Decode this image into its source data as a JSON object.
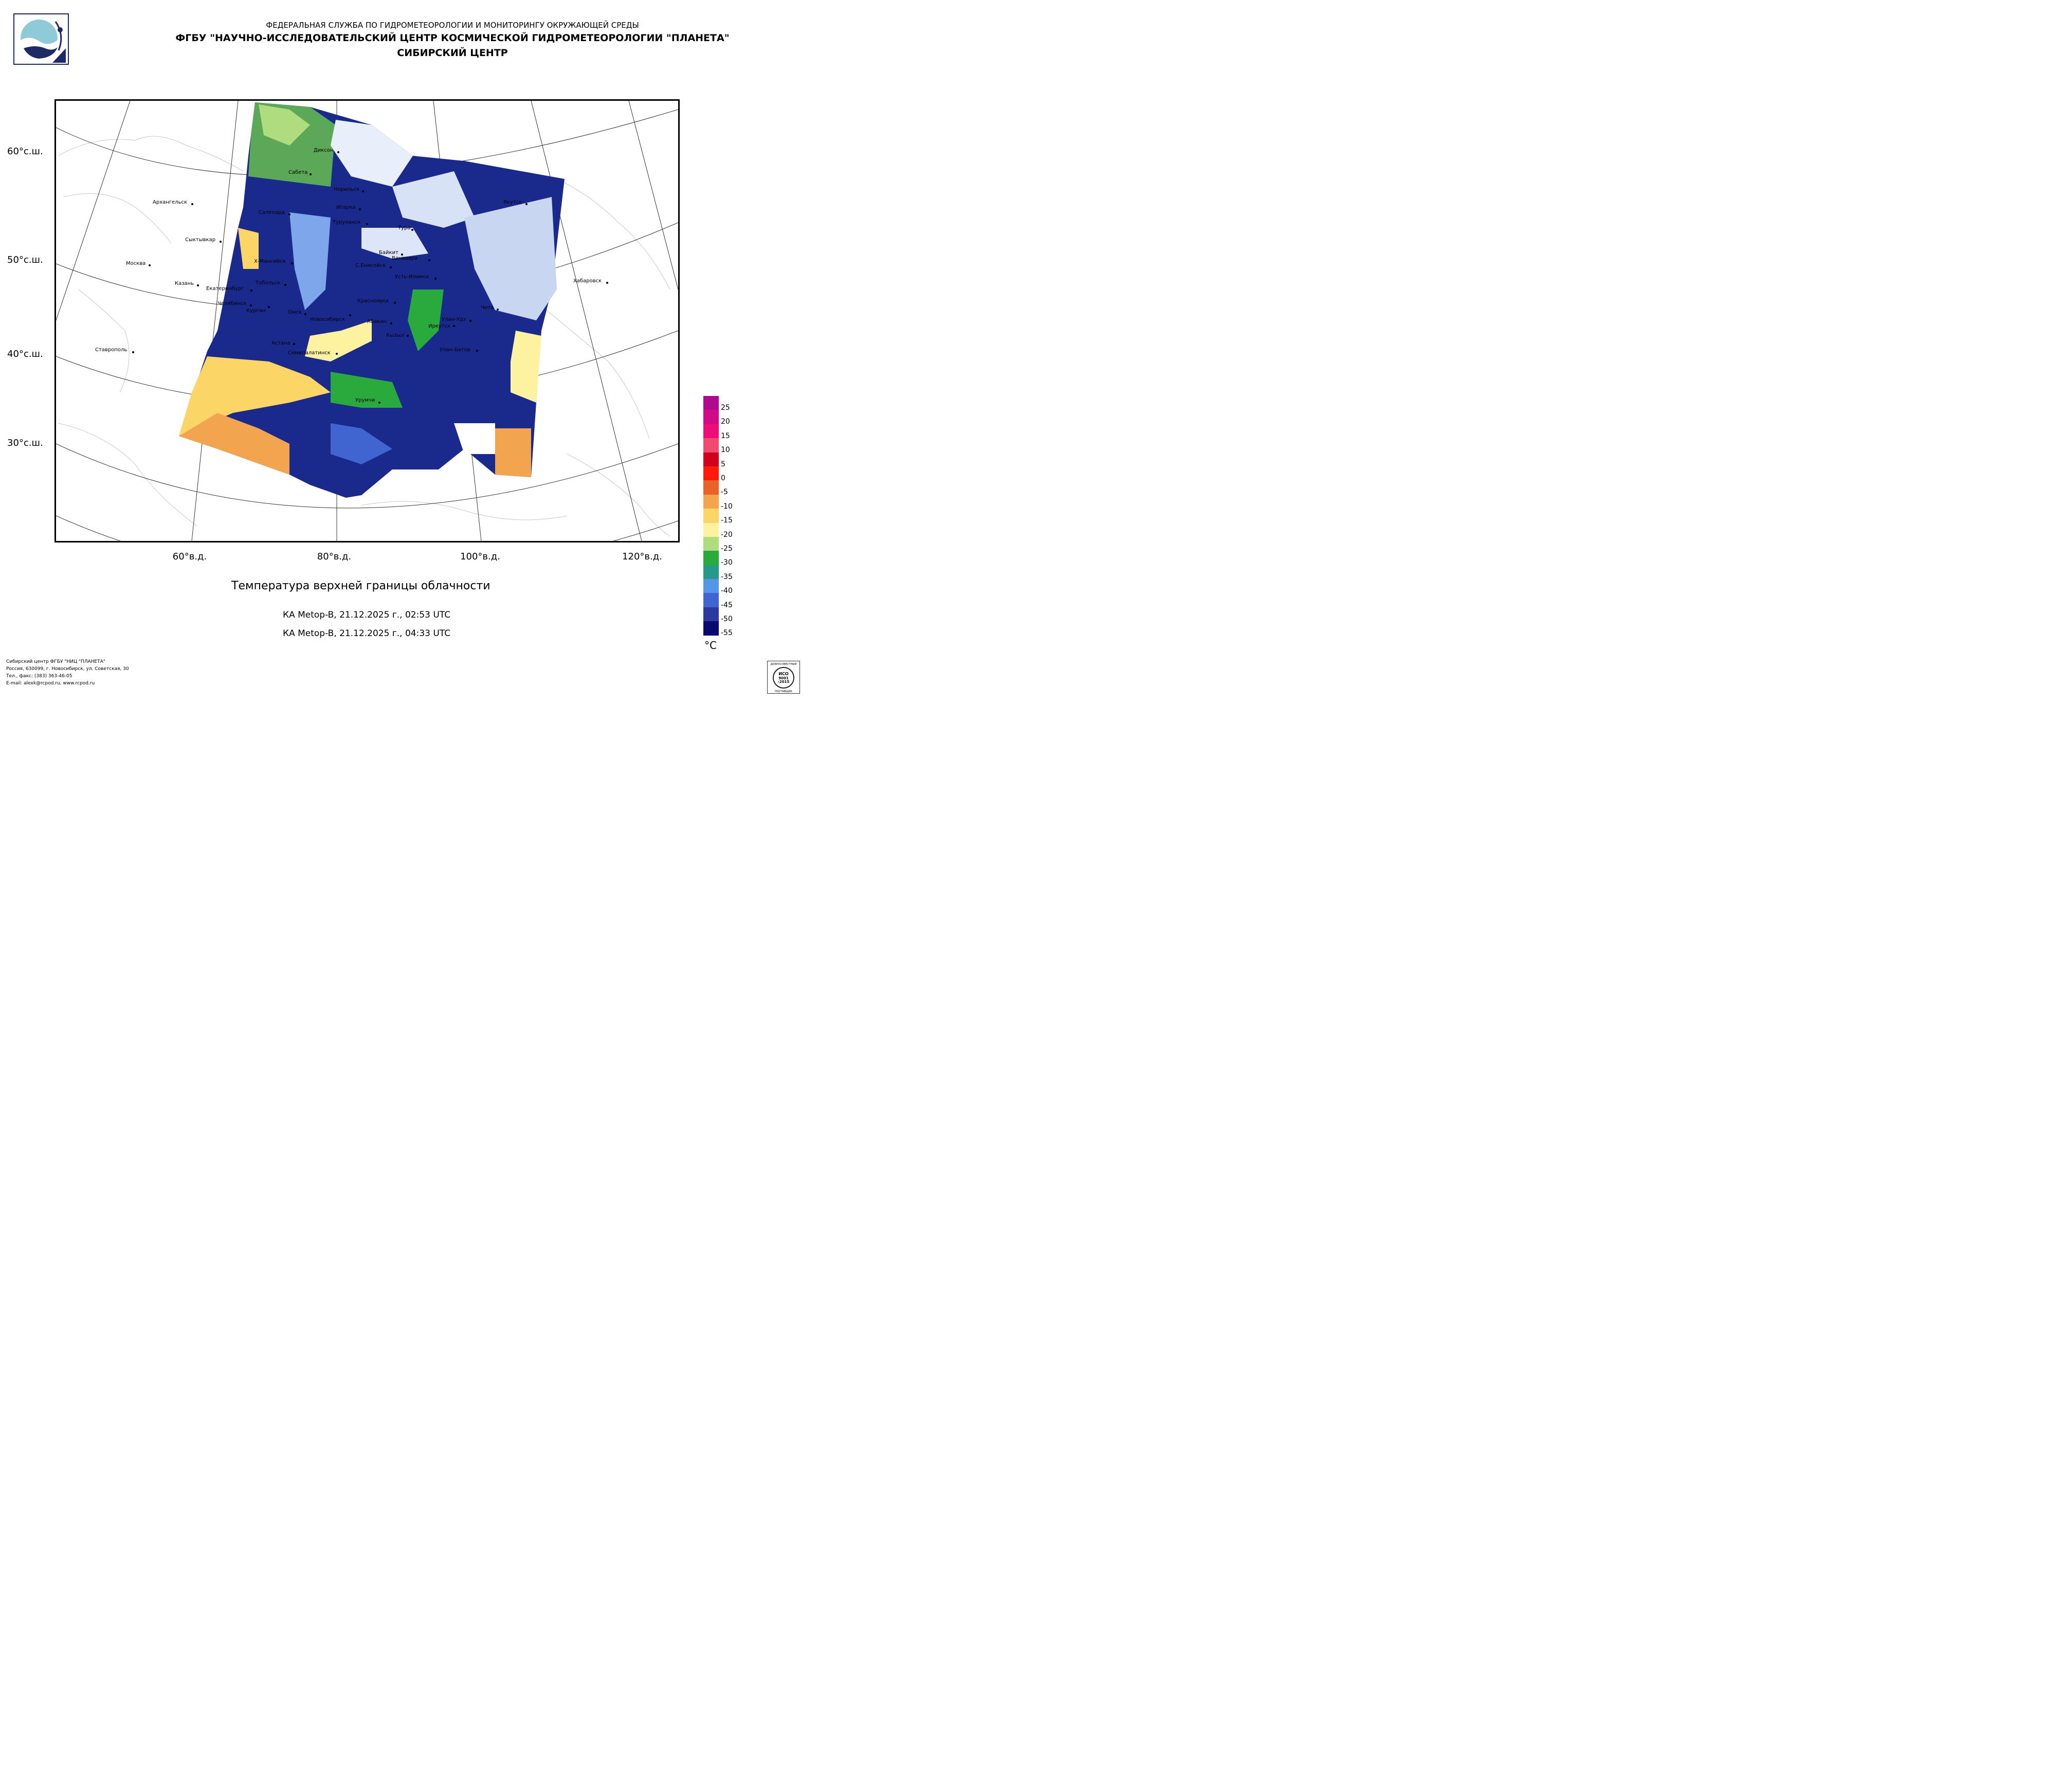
{
  "header": {
    "line1": "ФЕДЕРАЛЬНАЯ СЛУЖБА ПО ГИДРОМЕТЕОРОЛОГИИ И МОНИТОРИНГУ ОКРУЖАЮЩЕЙ СРЕДЫ",
    "line2": "ФГБУ \"НАУЧНО-ИССЛЕДОВАТЕЛЬСКИЙ ЦЕНТР КОСМИЧЕСКОЙ ГИДРОМЕТЕОРОЛОГИИ \"ПЛАНЕТА\"",
    "line3": "СИБИРСКИЙ ЦЕНТР"
  },
  "axes": {
    "lat_labels": [
      "60°с.ш.",
      "50°с.ш.",
      "40°с.ш.",
      "30°с.ш."
    ],
    "lon_labels": [
      "60°в.д.",
      "80°в.д.",
      "100°в.д.",
      "120°в.д."
    ]
  },
  "cities": {
    "diksom": "Диксон",
    "sabeta": "Сабета",
    "norilsk": "Норильск",
    "arkhangelsk": "Архангельск",
    "igarka": "Игарка",
    "salekhard": "Салехард",
    "turukhansk": "Туруханск",
    "yakutsk": "Якутск",
    "tura": "Тура",
    "syktyvkar": "Сыктывкар",
    "baikit": "Байкит",
    "vanavara": "Ванавара",
    "moscow": "Москва",
    "khmansiysk": "Х-Мансийск",
    "senisseysk": "С.Енисейск",
    "ustilimsk": "Усть-Илимск",
    "khabarovsk": "Хабаровск",
    "kazan": "Казань",
    "tobolsk": "Тобольск",
    "ekaterinburg": "Екатеринбург",
    "krasnoyarsk": "Красноярск",
    "chelyabinsk": "Челябинск",
    "kurgan": "Курган",
    "chita": "Чита",
    "omsk": "Омск",
    "novosibirsk": "Новосибирск",
    "abakan": "Абакан",
    "ulanude": "Улан-Удэ",
    "irkutsk": "Иркутск",
    "kyzyl": "Кызыл",
    "astana": "Астана",
    "stavropol": "Ставрополь",
    "semipalatinsk": "Семипалатинск",
    "ulanbator": "Улан-Батор",
    "urumqi": "Урумчи"
  },
  "caption": "Температура верхней границы облачности",
  "passes": [
    "КА Metop-B, 21.12.2025 г., 02:53 UTC",
    "КА Metop-B, 21.12.2025 г., 04:33 UTC"
  ],
  "legend": {
    "unit": "°C",
    "labels": [
      "25",
      "20",
      "15",
      "10",
      "5",
      "0",
      "-5",
      "-10",
      "-15",
      "-20",
      "-25",
      "-30",
      "-35",
      "-40",
      "-45",
      "-50",
      "-55"
    ],
    "colors": [
      "#b0088f",
      "#d10a88",
      "#ee0c78",
      "#f04a70",
      "#d0021b",
      "#ff1a0a",
      "#e8622a",
      "#f2a44e",
      "#fbd566",
      "#fdf2a0",
      "#b0dc80",
      "#2aaa3c",
      "#28988a",
      "#5596e6",
      "#4064d0",
      "#2a3a9e",
      "#0a0a6e"
    ]
  },
  "footer": {
    "line1": "Сибирский центр ФГБУ \"НИЦ \"ПЛАНЕТА\"",
    "line2": "Россия, 630099, г. Новосибирск, ул. Советская, 30",
    "line3": "Тел., факс: (383) 363-46-05",
    "line4": "E-mail: alexk@rcpod.ru, www.rcpod.ru"
  },
  "cert": {
    "top": "ДОБРОСОВЕСТНЫЙ",
    "mid1": "ИСО",
    "mid2": "9001",
    "mid3": "-2015",
    "bottom": "ПОСТАВЩИК"
  }
}
